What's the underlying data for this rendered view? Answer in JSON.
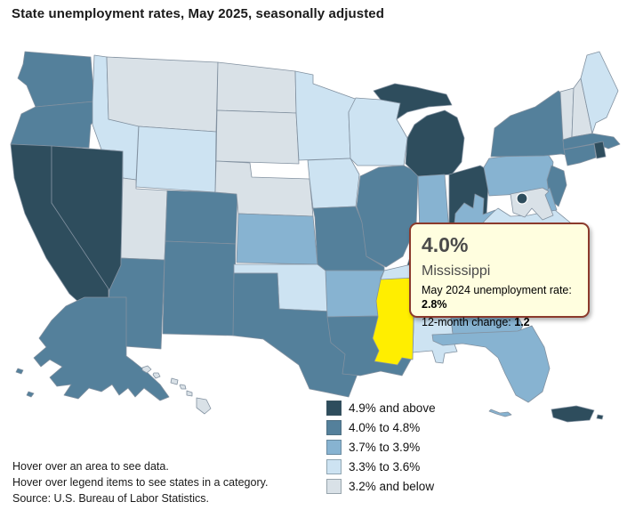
{
  "title": "State unemployment rates, May 2025, seasonally adjusted",
  "tooltip": {
    "value": "4.0%",
    "state_name": "Mississippi",
    "detail1_label": "May 2024 unemployment rate: ",
    "detail1_value": "2.8%",
    "detail2_label": "12-month change: ",
    "detail2_value": "1.2"
  },
  "legend": {
    "items": [
      {
        "key": "cat1",
        "label": "4.9% and above",
        "color": "#2e4d5d"
      },
      {
        "key": "cat2",
        "label": "4.0% to 4.8%",
        "color": "#54809b"
      },
      {
        "key": "cat3",
        "label": "3.7% to 3.9%",
        "color": "#87b3d1"
      },
      {
        "key": "cat4",
        "label": "3.3% to 3.6%",
        "color": "#cde3f2"
      },
      {
        "key": "cat5",
        "label": "3.2% and below",
        "color": "#d9e1e7"
      }
    ]
  },
  "notes": {
    "line1": "Hover over an area to see data.",
    "line2": "Hover over legend items to see states in a category.",
    "source": "Source: U.S. Bureau of Labor Statistics."
  },
  "map": {
    "highlighted_state": "MS",
    "highlight_color": "#ffee00",
    "border_color": "#8291a0"
  },
  "chart_data": {
    "type": "choropleth_map",
    "title": "State unemployment rates, May 2025, seasonally adjusted",
    "unit": "unemployment rate, percent, seasonally adjusted",
    "legend_bins": [
      "4.9% and above",
      "4.0% to 4.8%",
      "3.7% to 3.9%",
      "3.3% to 3.6%",
      "3.2% and below"
    ],
    "highlighted_point": {
      "state": "Mississippi",
      "rate": "4.0%",
      "may_2024_rate": "2.8%",
      "twelve_month_change": "1.2"
    },
    "state_categories": {
      "WA": "cat2",
      "OR": "cat2",
      "CA": "cat1",
      "NV": "cat1",
      "ID": "cat4",
      "MT": "cat5",
      "WY": "cat4",
      "UT": "cat5",
      "AZ": "cat2",
      "CO": "cat2",
      "NM": "cat2",
      "ND": "cat5",
      "SD": "cat5",
      "NE": "cat5",
      "KS": "cat3",
      "OK": "cat4",
      "TX": "cat2",
      "MN": "cat4",
      "IA": "cat4",
      "MO": "cat2",
      "AR": "cat3",
      "LA": "cat2",
      "WI": "cat4",
      "IL": "cat2",
      "MI": "cat1",
      "IN": "cat3",
      "OH": "cat1",
      "KY": "cat1",
      "TN": "cat4",
      "MS": "cat2",
      "AL": "cat4",
      "GA": "cat3",
      "FL": "cat3",
      "SC": "cat2",
      "NC": "cat3",
      "VA": "cat4",
      "WV": "cat3",
      "PA": "cat3",
      "NY": "cat2",
      "VT": "cat5",
      "NH": "cat5",
      "ME": "cat4",
      "MA": "cat2",
      "RI": "cat1",
      "CT": "cat2",
      "NJ": "cat2",
      "DE": "cat3",
      "MD": "cat5",
      "DC": "cat1",
      "AK": "cat2",
      "HI": "cat5",
      "PR": "cat1"
    }
  }
}
